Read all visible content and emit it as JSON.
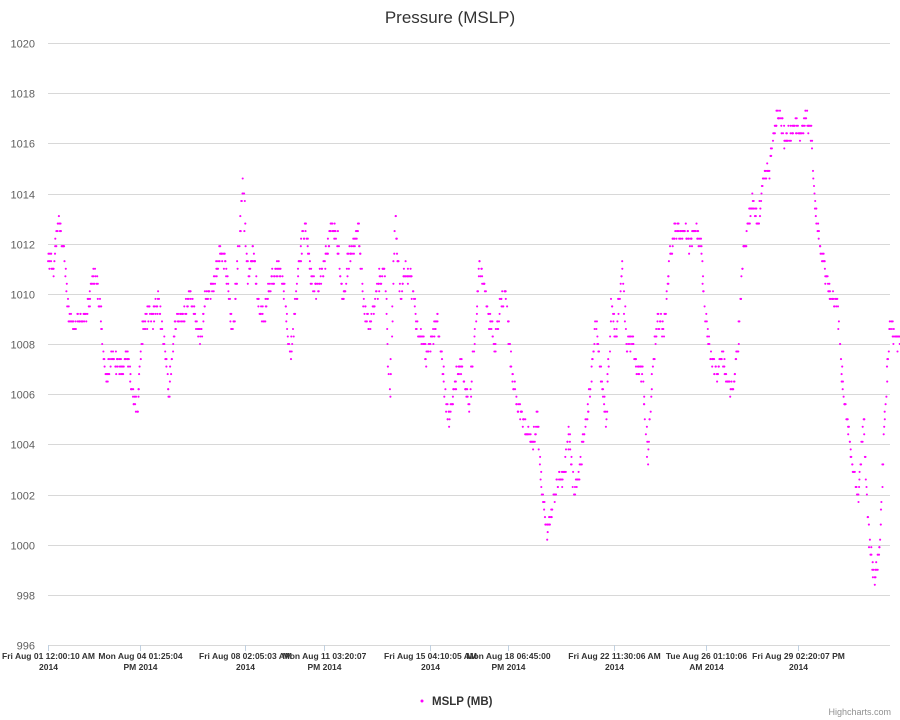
{
  "chart_data": {
    "type": "scatter",
    "title": "Pressure (MSLP)",
    "y_axis": {
      "min": 996,
      "max": 1020,
      "tick_interval": 2,
      "tick_labels": [
        "996",
        "998",
        "1000",
        "1002",
        "1004",
        "1006",
        "1008",
        "1010",
        "1012",
        "1014",
        "1016",
        "1018",
        "1020"
      ]
    },
    "x_axis": {
      "range_days": [
        0,
        32
      ],
      "tick_positions_days": [
        0,
        3.5,
        7.5,
        10.5,
        14.5,
        17.5,
        21.5,
        25,
        28.5
      ],
      "tick_labels": [
        [
          "Fri Aug 01 12:00:10 AM",
          "2014"
        ],
        [
          "Mon Aug 04 01:25:04",
          "PM 2014"
        ],
        [
          "Fri Aug 08 02:05:03 AM",
          "2014"
        ],
        [
          "Mon Aug 11 03:20:07",
          "PM 2014"
        ],
        [
          "Fri Aug 15 04:10:05 AM",
          "2014"
        ],
        [
          "Mon Aug 18 06:45:00",
          "PM 2014"
        ],
        [
          "Fri Aug 22 11:30:06 AM",
          "2014"
        ],
        [
          "Tue Aug 26 01:10:06",
          "AM 2014"
        ],
        [
          "Fri Aug 29 02:20:07 PM",
          "2014"
        ]
      ]
    },
    "series": [
      {
        "name": "MSLP (MB)",
        "color": "#ff00ff",
        "points": [
          [
            0.0,
            1011.5
          ],
          [
            0.2,
            1011.0
          ],
          [
            0.4,
            1012.8
          ],
          [
            0.6,
            1011.8
          ],
          [
            0.8,
            1009.0
          ],
          [
            1.0,
            1008.6
          ],
          [
            1.2,
            1009.2
          ],
          [
            1.4,
            1009.0
          ],
          [
            1.6,
            1010.0
          ],
          [
            1.8,
            1010.8
          ],
          [
            2.0,
            1009.2
          ],
          [
            2.2,
            1006.5
          ],
          [
            2.4,
            1007.5
          ],
          [
            2.6,
            1007.2
          ],
          [
            2.8,
            1007.0
          ],
          [
            3.0,
            1007.8
          ],
          [
            3.2,
            1006.0
          ],
          [
            3.4,
            1005.4
          ],
          [
            3.6,
            1008.5
          ],
          [
            3.8,
            1009.2
          ],
          [
            4.0,
            1009.0
          ],
          [
            4.2,
            1009.8
          ],
          [
            4.4,
            1008.2
          ],
          [
            4.6,
            1006.0
          ],
          [
            4.8,
            1008.6
          ],
          [
            5.0,
            1009.0
          ],
          [
            5.2,
            1009.2
          ],
          [
            5.4,
            1010.0
          ],
          [
            5.6,
            1009.0
          ],
          [
            5.8,
            1008.2
          ],
          [
            6.0,
            1009.8
          ],
          [
            6.2,
            1010.2
          ],
          [
            6.4,
            1011.0
          ],
          [
            6.6,
            1011.8
          ],
          [
            6.8,
            1010.8
          ],
          [
            7.0,
            1008.2
          ],
          [
            7.2,
            1011.0
          ],
          [
            7.4,
            1014.6
          ],
          [
            7.6,
            1010.5
          ],
          [
            7.8,
            1011.8
          ],
          [
            8.0,
            1009.6
          ],
          [
            8.2,
            1009.0
          ],
          [
            8.4,
            1010.2
          ],
          [
            8.6,
            1010.8
          ],
          [
            8.8,
            1011.0
          ],
          [
            9.0,
            1010.0
          ],
          [
            9.2,
            1007.4
          ],
          [
            9.4,
            1009.6
          ],
          [
            9.6,
            1011.5
          ],
          [
            9.8,
            1012.8
          ],
          [
            10.0,
            1010.6
          ],
          [
            10.2,
            1010.0
          ],
          [
            10.4,
            1010.8
          ],
          [
            10.6,
            1011.8
          ],
          [
            10.8,
            1012.6
          ],
          [
            11.0,
            1012.2
          ],
          [
            11.2,
            1009.6
          ],
          [
            11.4,
            1011.2
          ],
          [
            11.6,
            1012.0
          ],
          [
            11.8,
            1012.5
          ],
          [
            12.0,
            1009.5
          ],
          [
            12.2,
            1008.8
          ],
          [
            12.4,
            1009.6
          ],
          [
            12.6,
            1010.6
          ],
          [
            12.8,
            1011.0
          ],
          [
            13.0,
            1005.8
          ],
          [
            13.2,
            1013.2
          ],
          [
            13.4,
            1010.0
          ],
          [
            13.6,
            1011.0
          ],
          [
            13.8,
            1010.6
          ],
          [
            14.0,
            1008.8
          ],
          [
            14.2,
            1008.2
          ],
          [
            14.4,
            1007.5
          ],
          [
            14.6,
            1008.2
          ],
          [
            14.8,
            1009.0
          ],
          [
            15.0,
            1007.0
          ],
          [
            15.2,
            1004.8
          ],
          [
            15.4,
            1005.8
          ],
          [
            15.6,
            1007.2
          ],
          [
            15.8,
            1006.8
          ],
          [
            16.0,
            1005.4
          ],
          [
            16.2,
            1008.0
          ],
          [
            16.4,
            1011.2
          ],
          [
            16.6,
            1010.0
          ],
          [
            16.8,
            1008.8
          ],
          [
            17.0,
            1008.0
          ],
          [
            17.2,
            1009.6
          ],
          [
            17.4,
            1009.8
          ],
          [
            17.6,
            1007.2
          ],
          [
            17.8,
            1005.8
          ],
          [
            18.0,
            1005.0
          ],
          [
            18.2,
            1004.6
          ],
          [
            18.4,
            1004.0
          ],
          [
            18.6,
            1005.0
          ],
          [
            18.8,
            1001.8
          ],
          [
            19.0,
            1000.4
          ],
          [
            19.2,
            1001.8
          ],
          [
            19.4,
            1002.6
          ],
          [
            19.6,
            1002.8
          ],
          [
            19.8,
            1004.4
          ],
          [
            20.0,
            1002.0
          ],
          [
            20.2,
            1003.0
          ],
          [
            20.4,
            1004.4
          ],
          [
            20.6,
            1006.2
          ],
          [
            20.8,
            1008.8
          ],
          [
            21.0,
            1007.0
          ],
          [
            21.2,
            1004.8
          ],
          [
            21.4,
            1009.4
          ],
          [
            21.6,
            1008.2
          ],
          [
            21.8,
            1011.2
          ],
          [
            22.0,
            1008.0
          ],
          [
            22.2,
            1008.2
          ],
          [
            22.4,
            1007.0
          ],
          [
            22.6,
            1006.8
          ],
          [
            22.8,
            1003.4
          ],
          [
            23.0,
            1007.4
          ],
          [
            23.2,
            1009.0
          ],
          [
            23.4,
            1008.4
          ],
          [
            23.6,
            1011.0
          ],
          [
            23.8,
            1012.6
          ],
          [
            24.0,
            1012.4
          ],
          [
            24.2,
            1012.6
          ],
          [
            24.4,
            1012.0
          ],
          [
            24.6,
            1012.6
          ],
          [
            24.8,
            1012.0
          ],
          [
            25.0,
            1009.0
          ],
          [
            25.2,
            1007.2
          ],
          [
            25.4,
            1006.8
          ],
          [
            25.6,
            1007.6
          ],
          [
            25.8,
            1006.8
          ],
          [
            26.0,
            1006.0
          ],
          [
            26.2,
            1007.6
          ],
          [
            26.4,
            1011.4
          ],
          [
            26.6,
            1012.8
          ],
          [
            26.8,
            1013.8
          ],
          [
            27.0,
            1012.8
          ],
          [
            27.2,
            1014.6
          ],
          [
            27.4,
            1015.0
          ],
          [
            27.6,
            1016.6
          ],
          [
            27.8,
            1017.3
          ],
          [
            28.0,
            1016.2
          ],
          [
            28.2,
            1016.4
          ],
          [
            28.4,
            1016.8
          ],
          [
            28.6,
            1016.4
          ],
          [
            28.8,
            1017.0
          ],
          [
            29.0,
            1016.4
          ],
          [
            29.2,
            1013.0
          ],
          [
            29.4,
            1011.6
          ],
          [
            29.6,
            1010.4
          ],
          [
            29.8,
            1010.0
          ],
          [
            30.0,
            1009.6
          ],
          [
            30.2,
            1006.2
          ],
          [
            30.4,
            1004.8
          ],
          [
            30.6,
            1002.8
          ],
          [
            30.8,
            1002.0
          ],
          [
            31.0,
            1005.2
          ],
          [
            31.2,
            1000.4
          ],
          [
            31.4,
            998.6
          ],
          [
            31.6,
            1000.0
          ],
          [
            31.8,
            1005.0
          ],
          [
            32.0,
            1008.8
          ],
          [
            32.2,
            1008.2
          ],
          [
            32.4,
            1008.0
          ]
        ]
      }
    ],
    "legend": {
      "position": "bottom-center"
    },
    "credits": "Highcharts.com",
    "grid": true
  }
}
